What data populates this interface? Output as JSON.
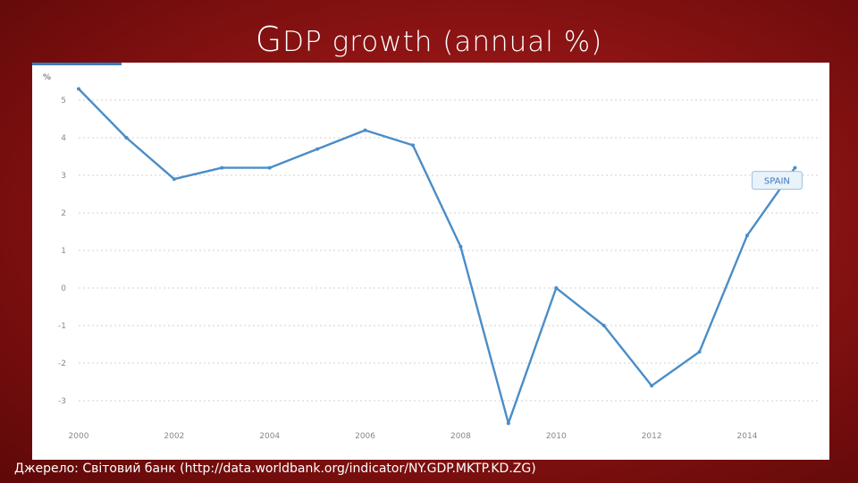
{
  "slide": {
    "title_first": "G",
    "title_rest": "DP growth (annual %)",
    "source": "Джерело: Світовий банк (http://data.worldbank.org/indicator/NY.GDP.MKTP.KD.ZG)"
  },
  "colors": {
    "background": "#a51c1c",
    "line": "#4a8dc8",
    "grid": "#d0d0d0",
    "text": "#888888"
  },
  "chart_data": {
    "type": "line",
    "title": "",
    "ylabel": "%",
    "xlabel": "",
    "x": [
      2000,
      2001,
      2002,
      2003,
      2004,
      2005,
      2006,
      2007,
      2008,
      2009,
      2010,
      2011,
      2012,
      2013,
      2014,
      2015
    ],
    "series": [
      {
        "name": "SPAIN",
        "values": [
          5.3,
          4.0,
          2.9,
          3.2,
          3.2,
          3.7,
          4.2,
          3.8,
          1.1,
          -3.6,
          0.0,
          -1.0,
          -2.6,
          -1.7,
          1.4,
          3.2
        ]
      }
    ],
    "xticks": [
      "2000",
      "2002",
      "2004",
      "2006",
      "2008",
      "2010",
      "2012",
      "2014"
    ],
    "yticks": [
      "5",
      "4",
      "3",
      "2",
      "1",
      "0",
      "-1",
      "-2",
      "-3"
    ],
    "ylim": [
      -3.6,
      5.6
    ],
    "xlim": [
      2000,
      2015
    ],
    "grid": true,
    "legend": "end-of-line label"
  }
}
